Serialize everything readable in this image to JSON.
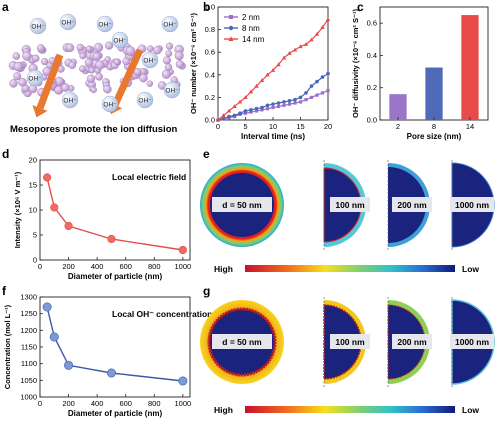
{
  "panel_labels": {
    "a": "a",
    "b": "b",
    "c": "c",
    "d": "d",
    "e": "e",
    "f": "f",
    "g": "g"
  },
  "panel_a": {
    "ion_label": "OH⁻",
    "caption": "Mesopores promote the ion diffusion",
    "ion_color": "#b7c8e4",
    "particle_color": "#c7a9d8",
    "arrow_color": "#e8782f"
  },
  "chart_data": [
    {
      "panel": "b",
      "type": "line",
      "xlabel": "Interval time (ns)",
      "ylabel": "OH⁻ number (×10⁻⁶ cm² S⁻¹)",
      "xlim": [
        0,
        20
      ],
      "ylim": [
        0,
        1.0
      ],
      "xticks": [
        "0",
        "5",
        "10",
        "15",
        "20"
      ],
      "yticks": [
        "0.0",
        "0.2",
        "0.4",
        "0.6",
        "0.8",
        "1.0"
      ],
      "legend": "top-left",
      "series": [
        {
          "name": "2 nm",
          "color": "#9b6fc8",
          "marker": "square",
          "x": [
            0,
            1,
            2,
            3,
            4,
            5,
            6,
            7,
            8,
            9,
            10,
            11,
            12,
            13,
            14,
            15,
            16,
            17,
            18,
            19,
            20
          ],
          "y": [
            0,
            0.01,
            0.02,
            0.03,
            0.05,
            0.06,
            0.07,
            0.08,
            0.09,
            0.1,
            0.11,
            0.12,
            0.13,
            0.14,
            0.15,
            0.16,
            0.18,
            0.2,
            0.22,
            0.24,
            0.26
          ]
        },
        {
          "name": "8 nm",
          "color": "#4a66b8",
          "marker": "circle",
          "x": [
            0,
            1,
            2,
            3,
            4,
            5,
            6,
            7,
            8,
            9,
            10,
            11,
            12,
            13,
            14,
            15,
            16,
            17,
            18,
            19,
            20
          ],
          "y": [
            0,
            0.01,
            0.03,
            0.04,
            0.06,
            0.08,
            0.09,
            0.1,
            0.11,
            0.13,
            0.14,
            0.15,
            0.16,
            0.17,
            0.18,
            0.2,
            0.24,
            0.3,
            0.34,
            0.38,
            0.41
          ]
        },
        {
          "name": "14 nm",
          "color": "#e84a4a",
          "marker": "triangle",
          "x": [
            0,
            1,
            2,
            3,
            4,
            5,
            6,
            7,
            8,
            9,
            10,
            11,
            12,
            13,
            14,
            15,
            16,
            17,
            18,
            19,
            20
          ],
          "y": [
            0,
            0.04,
            0.08,
            0.12,
            0.16,
            0.2,
            0.25,
            0.3,
            0.35,
            0.4,
            0.44,
            0.49,
            0.55,
            0.59,
            0.62,
            0.65,
            0.67,
            0.71,
            0.76,
            0.82,
            0.89
          ]
        }
      ]
    },
    {
      "panel": "c",
      "type": "bar",
      "xlabel": "Pore size (nm)",
      "ylabel": "OH⁻ diffusivity (×10⁻⁶ cm² S⁻¹)",
      "categories": [
        "2",
        "8",
        "14"
      ],
      "values": [
        0.16,
        0.325,
        0.65
      ],
      "colors": [
        "#9b75c8",
        "#4f6ab9",
        "#e84a4a"
      ],
      "ylim": [
        0,
        0.7
      ],
      "yticks": [
        "0.0",
        "0.2",
        "0.4",
        "0.6"
      ]
    },
    {
      "panel": "d",
      "type": "line",
      "annotation": "Local electric field",
      "xlabel": "Diameter of particle (nm)",
      "ylabel": "Intensity (×10⁶ V m⁻¹)",
      "color": "#e0504a",
      "x": [
        50,
        100,
        200,
        500,
        1000
      ],
      "y": [
        16.5,
        10.5,
        6.8,
        4.2,
        2.0
      ],
      "xlim": [
        0,
        1050
      ],
      "ylim": [
        0,
        20
      ],
      "xticks": [
        "0",
        "200",
        "400",
        "600",
        "800",
        "1000"
      ],
      "yticks": [
        "0",
        "5",
        "10",
        "15",
        "20"
      ]
    },
    {
      "panel": "f",
      "type": "line",
      "annotation": "Local OH⁻ concentration",
      "xlabel": "Diameter of particle (nm)",
      "ylabel": "Concentration (mol L⁻¹)",
      "color": "#3a5aa8",
      "x": [
        50,
        100,
        200,
        500,
        1000
      ],
      "y": [
        1270,
        1180,
        1095,
        1072,
        1048
      ],
      "xlim": [
        0,
        1050
      ],
      "ylim": [
        1000,
        1300
      ],
      "xticks": [
        "0",
        "200",
        "400",
        "600",
        "800",
        "1000"
      ],
      "yticks": [
        "1000",
        "1050",
        "1100",
        "1150",
        "1200",
        "1250",
        "1300"
      ]
    }
  ],
  "panel_e": {
    "labels": [
      "d = 50 nm",
      "100 nm",
      "200 nm",
      "1000 nm"
    ],
    "colorbar_high": "High",
    "colorbar_low": "Low"
  },
  "panel_g": {
    "labels": [
      "d = 50 nm",
      "100 nm",
      "200 nm",
      "1000 nm"
    ],
    "colorbar_high": "High",
    "colorbar_low": "Low"
  }
}
